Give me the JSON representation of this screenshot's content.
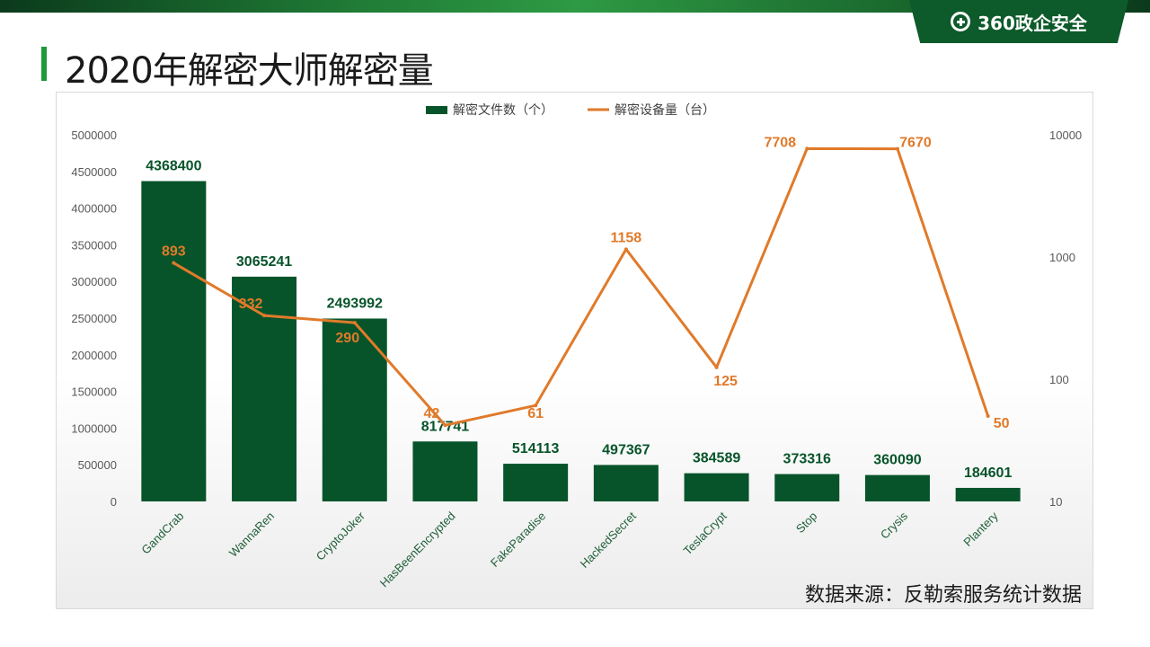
{
  "brand": {
    "name": "360政企安全",
    "icon": "plus-circle-icon"
  },
  "page": {
    "title": "2020年解密大师解密量",
    "source": "数据来源：反勒索服务统计数据"
  },
  "colors": {
    "bar": "#07542a",
    "line": "#e07a2a",
    "accent": "#1e9a3a"
  },
  "chart_data": {
    "type": "bar+line",
    "categories": [
      "GandCrab",
      "WannaRen",
      "CryptoJoker",
      "HasBeenEncrypted",
      "FakeParadise",
      "HackedSecret",
      "TeslaCrypt",
      "Stop",
      "Crysis",
      "Plantery"
    ],
    "series": [
      {
        "name": "解密文件数（个）",
        "type": "bar",
        "axis": "left",
        "values": [
          4368400,
          3065241,
          2493992,
          817741,
          514113,
          497367,
          384589,
          373316,
          360090,
          184601
        ]
      },
      {
        "name": "解密设备量（台）",
        "type": "line",
        "axis": "right",
        "values": [
          893,
          332,
          290,
          42,
          61,
          1158,
          125,
          7708,
          7670,
          50
        ]
      }
    ],
    "left_axis": {
      "min": 0,
      "max": 5000000,
      "ticks": [
        "0",
        "500000",
        "1000000",
        "1500000",
        "2000000",
        "2500000",
        "3000000",
        "3500000",
        "4000000",
        "4500000",
        "5000000"
      ]
    },
    "right_axis": {
      "scale": "log",
      "min": 10,
      "max": 10000,
      "ticks": [
        "10",
        "100",
        "1000",
        "10000"
      ]
    },
    "legend_position": "top-center",
    "grid": false
  }
}
